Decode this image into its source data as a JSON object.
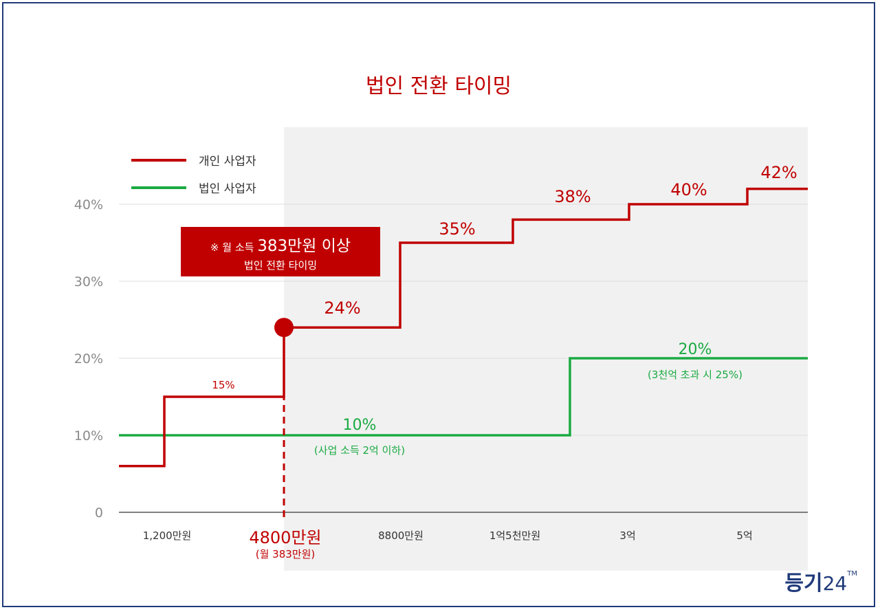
{
  "chart_data": {
    "type": "line",
    "step": true,
    "title": "법인 전환 타이밍",
    "xlabel": "",
    "ylabel": "",
    "ylim": [
      0,
      45
    ],
    "y_ticks": [
      {
        "value": 0,
        "label": "0"
      },
      {
        "value": 10,
        "label": "10%"
      },
      {
        "value": 20,
        "label": "20%"
      },
      {
        "value": 30,
        "label": "30%"
      },
      {
        "value": 40,
        "label": "40%"
      }
    ],
    "x_categories": [
      "1,200만원",
      "4800만원",
      "8800만원",
      "1억5천만원",
      "3억",
      "5억"
    ],
    "x_highlight": {
      "label": "4800만원",
      "sublabel": "(월 383만원)"
    },
    "grid": true,
    "legend": {
      "position": "top-left",
      "items": [
        {
          "name": "개인 사업자",
          "color": "#c00000"
        },
        {
          "name": "법인 사업자",
          "color": "#1aaa42"
        }
      ]
    },
    "series": [
      {
        "name": "개인 사업자",
        "color": "#c00000",
        "segments": [
          {
            "from": null,
            "to": "1,200만원",
            "value": 6,
            "label": ""
          },
          {
            "from": "1,200만원",
            "to": "4800만원",
            "value": 15,
            "label": "15%"
          },
          {
            "from": "4800만원",
            "to": "8800만원",
            "value": 24,
            "label": "24%"
          },
          {
            "from": "8800만원",
            "to": "1억5천만원",
            "value": 35,
            "label": "35%"
          },
          {
            "from": "1억5천만원",
            "to": "3억",
            "value": 38,
            "label": "38%"
          },
          {
            "from": "3억",
            "to": "5억",
            "value": 40,
            "label": "40%"
          },
          {
            "from": "5억",
            "to": null,
            "value": 42,
            "label": "42%"
          }
        ]
      },
      {
        "name": "법인 사업자",
        "color": "#1aaa42",
        "segments": [
          {
            "from": null,
            "to": "2억",
            "value": 10,
            "label": "10%",
            "note": "(사업 소득 2억 이하)"
          },
          {
            "from": "2억",
            "to": null,
            "value": 20,
            "label": "20%",
            "note": "(3천억 초과 시 25%)"
          }
        ]
      }
    ],
    "annotation": {
      "line1_prefix": "※ 월 소득",
      "line1_main": "383만원 이상",
      "line2": "법인 전환 타이밍"
    },
    "colors": {
      "title": "#c00000",
      "personal": "#c00000",
      "corporate": "#1aaa42",
      "shade": "#f1f1f1",
      "axis_text": "#8a8a8a",
      "frame": "#1f3a7a"
    }
  },
  "brand": {
    "main": "등기",
    "num": "24",
    "tm": "TM"
  }
}
